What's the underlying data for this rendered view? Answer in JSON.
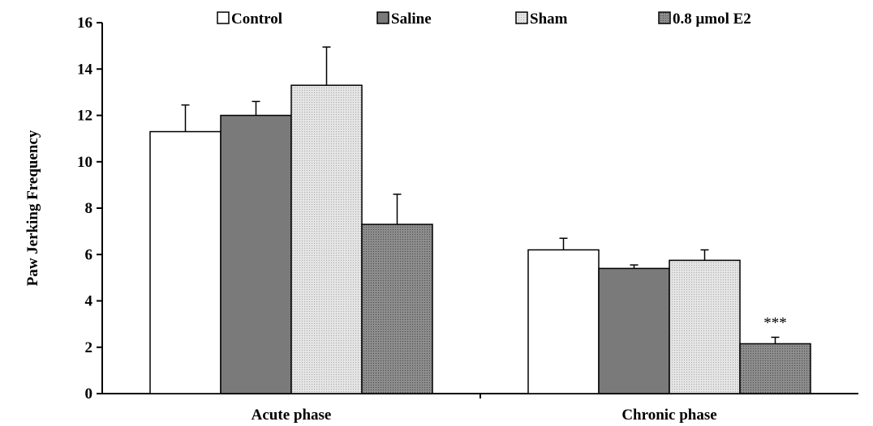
{
  "chart_data": {
    "type": "bar",
    "title": "",
    "xlabel": "",
    "ylabel": "Paw Jerking Frequency",
    "ylim": [
      0,
      16
    ],
    "yticks": [
      0,
      2,
      4,
      6,
      8,
      10,
      12,
      14,
      16
    ],
    "categories": [
      "Acute phase",
      "Chronic phase"
    ],
    "series": [
      {
        "name": "Control",
        "fill": "white",
        "color": "#ffffff",
        "values": [
          11.3,
          6.2
        ],
        "errors": [
          1.15,
          0.5
        ]
      },
      {
        "name": "Saline",
        "fill": "dark",
        "color": "#7a7a7a",
        "values": [
          12.0,
          5.4
        ],
        "errors": [
          0.6,
          0.15
        ]
      },
      {
        "name": "Sham",
        "fill": "light-dotted",
        "color": "#dcdcdc",
        "values": [
          13.3,
          5.75
        ],
        "errors": [
          1.65,
          0.45
        ]
      },
      {
        "name": "0.8 μmol E2",
        "fill": "dark-dotted",
        "color": "#8a8a8a",
        "values": [
          7.3,
          2.15
        ],
        "errors": [
          1.3,
          0.28
        ]
      }
    ],
    "annotations": [
      {
        "text": "***",
        "category": "Chronic phase",
        "series": "0.8 μmol E2"
      }
    ],
    "legend_position": "top",
    "grid": false
  }
}
